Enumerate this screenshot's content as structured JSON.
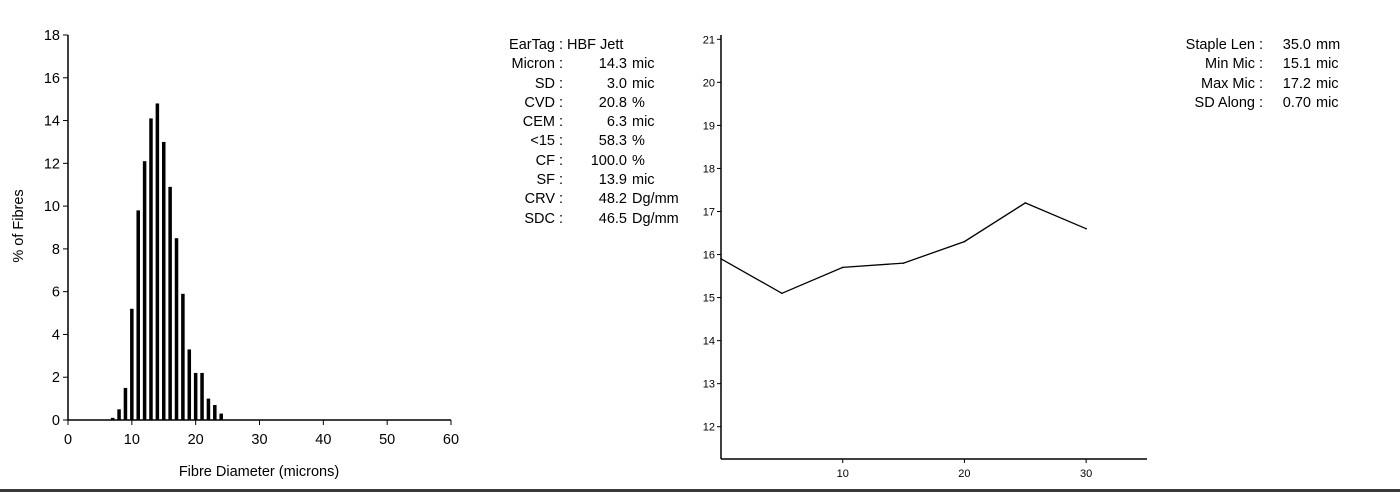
{
  "stats_left": [
    {
      "label": "EarTag",
      "value": "HBF Jett",
      "unit": ""
    },
    {
      "label": "Micron",
      "value": "14.3",
      "unit": "mic"
    },
    {
      "label": "SD",
      "value": "3.0",
      "unit": "mic"
    },
    {
      "label": "CVD",
      "value": "20.8",
      "unit": "%"
    },
    {
      "label": "CEM",
      "value": "6.3",
      "unit": "mic"
    },
    {
      "label": "<15",
      "value": "58.3",
      "unit": "%"
    },
    {
      "label": "CF",
      "value": "100.0",
      "unit": "%"
    },
    {
      "label": "SF",
      "value": "13.9",
      "unit": "mic"
    },
    {
      "label": "CRV",
      "value": "48.2",
      "unit": "Dg/mm"
    },
    {
      "label": "SDC",
      "value": "46.5",
      "unit": "Dg/mm"
    }
  ],
  "stats_right": [
    {
      "label": "Staple Len",
      "value": "35.0",
      "unit": "mm"
    },
    {
      "label": "Min Mic",
      "value": "15.1",
      "unit": "mic"
    },
    {
      "label": "Max Mic",
      "value": "17.2",
      "unit": "mic"
    },
    {
      "label": "SD Along",
      "value": "0.70",
      "unit": "mic"
    }
  ],
  "chart_data": [
    {
      "type": "bar",
      "xlabel": "Fibre Diameter (microns)",
      "ylabel": "% of Fibres",
      "xlim": [
        0,
        60
      ],
      "ylim": [
        0,
        18
      ],
      "xticks": [
        0,
        10,
        20,
        30,
        40,
        50,
        60
      ],
      "yticks": [
        0,
        2,
        4,
        6,
        8,
        10,
        12,
        14,
        16,
        18
      ],
      "x": [
        7,
        8,
        9,
        10,
        11,
        12,
        13,
        14,
        15,
        16,
        17,
        18,
        19,
        20,
        21,
        22,
        23,
        24
      ],
      "values": [
        0.1,
        0.5,
        1.5,
        5.2,
        9.8,
        12.1,
        14.1,
        14.8,
        13.0,
        10.9,
        8.5,
        5.9,
        3.3,
        2.2,
        2.2,
        1.0,
        0.7,
        0.3
      ]
    },
    {
      "type": "line",
      "xlabel": "",
      "ylabel": "",
      "xlim": [
        0,
        35
      ],
      "ylim": [
        11.25,
        21.1
      ],
      "xticks": [
        10,
        20,
        30
      ],
      "yticks": [
        12,
        13,
        14,
        15,
        16,
        17,
        18,
        19,
        20,
        21
      ],
      "x": [
        0,
        5,
        10,
        15,
        20,
        25,
        30
      ],
      "y": [
        15.9,
        15.1,
        15.7,
        15.8,
        16.3,
        17.2,
        16.6
      ]
    }
  ]
}
